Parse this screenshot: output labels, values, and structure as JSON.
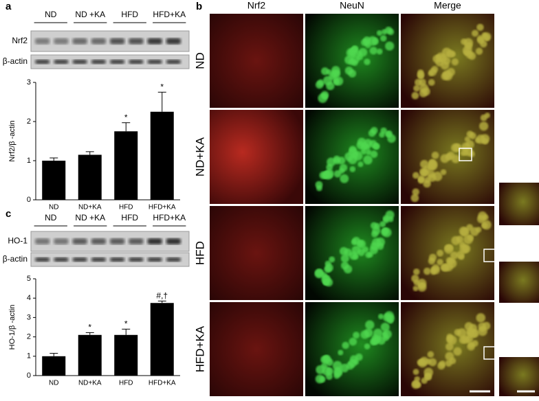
{
  "panel_labels": {
    "a": "a",
    "b": "b",
    "c": "c"
  },
  "blot_a": {
    "groups": [
      "ND",
      "ND +KA",
      "HFD",
      "HFD+KA"
    ],
    "rows": [
      "Nrf2",
      "β-actin"
    ]
  },
  "blot_c": {
    "groups": [
      "ND",
      "ND +KA",
      "HFD",
      "HFD+KA"
    ],
    "rows": [
      "HO-1",
      "β-actin"
    ]
  },
  "microscopy": {
    "columns": [
      "Nrf2",
      "NeuN",
      "Merge"
    ],
    "rows": [
      "ND",
      "ND+KA",
      "HFD",
      "HFD+KA"
    ]
  },
  "chart_data": [
    {
      "type": "bar",
      "y_label": "Nrf2/β -actin",
      "categories": [
        "ND",
        "ND+KA",
        "HFD",
        "HFD+KA"
      ],
      "values": [
        1.0,
        1.15,
        1.75,
        2.25
      ],
      "errors": [
        0.07,
        0.08,
        0.22,
        0.5
      ],
      "color": "#000000",
      "ylim": [
        0,
        3
      ],
      "yticks": [
        0,
        1,
        2,
        3
      ],
      "annotations": [
        {
          "category": "HFD",
          "text": "*"
        },
        {
          "category": "HFD+KA",
          "text": "*"
        }
      ]
    },
    {
      "type": "bar",
      "y_label": "HO-1/β -actin",
      "categories": [
        "ND",
        "ND+KA",
        "HFD",
        "HFD+KA"
      ],
      "values": [
        1.0,
        2.1,
        2.1,
        3.75
      ],
      "errors": [
        0.15,
        0.12,
        0.3,
        0.1
      ],
      "color": "#000000",
      "ylim": [
        0,
        5
      ],
      "yticks": [
        0,
        1,
        2,
        3,
        4,
        5
      ],
      "annotations": [
        {
          "category": "ND+KA",
          "text": "*"
        },
        {
          "category": "HFD",
          "text": "*"
        },
        {
          "category": "HFD+KA",
          "text": "#,†"
        }
      ]
    }
  ]
}
